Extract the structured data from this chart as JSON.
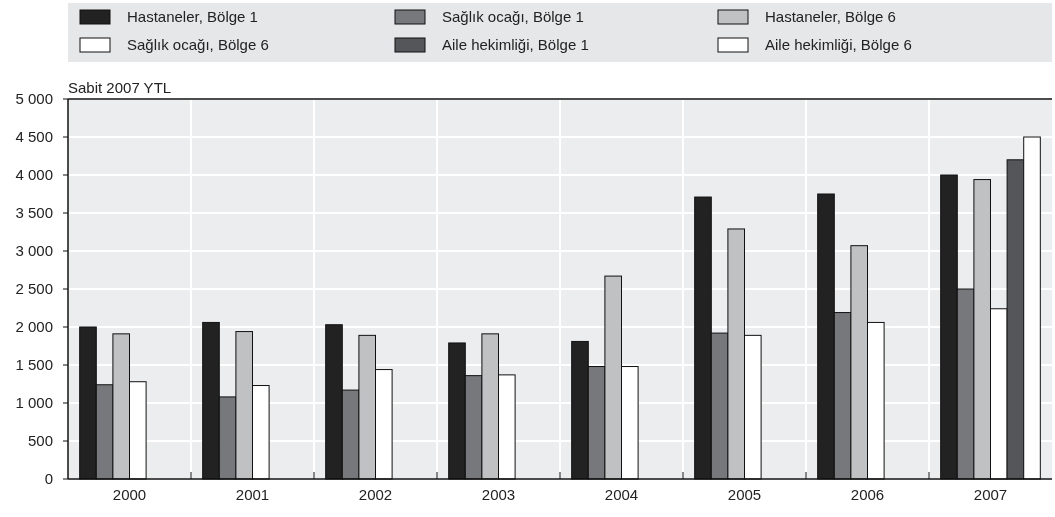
{
  "chart_data": {
    "type": "bar",
    "ylabel": "Sabit 2007 YTL",
    "categories": [
      "2000",
      "2001",
      "2002",
      "2003",
      "2004",
      "2005",
      "2006",
      "2007"
    ],
    "series": [
      {
        "name": "Hastaneler, Bölge 1",
        "color": "#222222",
        "values": [
          2000,
          2060,
          2030,
          1790,
          1810,
          3710,
          3750,
          4000
        ]
      },
      {
        "name": "Sağlık ocağı, Bölge 1",
        "color": "#77787c",
        "values": [
          1240,
          1080,
          1170,
          1360,
          1480,
          1920,
          2190,
          2500
        ]
      },
      {
        "name": "Hastaneler, Bölge 6",
        "color": "#c0c1c3",
        "values": [
          1910,
          1940,
          1890,
          1910,
          2670,
          3290,
          3070,
          3940
        ]
      },
      {
        "name": "Sağlık ocağı, Bölge 6",
        "color": "#ffffff",
        "values": [
          1280,
          1230,
          1440,
          1370,
          1480,
          1890,
          2060,
          2240
        ]
      },
      {
        "name": "Aile hekimliği, Bölge 1",
        "color": "#555659",
        "values": [
          null,
          null,
          null,
          null,
          null,
          null,
          null,
          4200
        ]
      },
      {
        "name": "Aile hekimliği, Bölge 6",
        "color": "#ffffff",
        "values": [
          null,
          null,
          null,
          null,
          null,
          null,
          null,
          4500
        ]
      }
    ],
    "ylim": [
      0,
      5000
    ],
    "yticks": [
      0,
      500,
      {
        "value": 1000,
        "label": "1 000"
      },
      {
        "value": 1500,
        "label": "1 500"
      },
      {
        "value": 2000,
        "label": "2 000"
      },
      {
        "value": 2500,
        "label": "2 500"
      },
      {
        "value": 3000,
        "label": "3 000"
      },
      {
        "value": 3500,
        "label": "3 500"
      },
      {
        "value": 4000,
        "label": "4 000"
      },
      {
        "value": 4500,
        "label": "4 500"
      },
      {
        "value": 5000,
        "label": "5 000"
      }
    ],
    "grid": true,
    "legend": "top"
  }
}
